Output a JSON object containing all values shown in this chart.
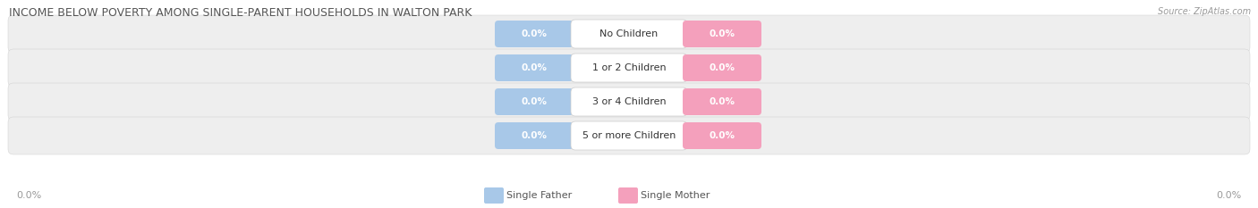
{
  "title": "INCOME BELOW POVERTY AMONG SINGLE-PARENT HOUSEHOLDS IN WALTON PARK",
  "source": "Source: ZipAtlas.com",
  "categories": [
    "No Children",
    "1 or 2 Children",
    "3 or 4 Children",
    "5 or more Children"
  ],
  "single_father_values": [
    0.0,
    0.0,
    0.0,
    0.0
  ],
  "single_mother_values": [
    0.0,
    0.0,
    0.0,
    0.0
  ],
  "father_color": "#a8c8e8",
  "mother_color": "#f4a0bc",
  "row_bg_color": "#eeeeee",
  "title_color": "#555555",
  "source_color": "#999999",
  "axis_label": "0.0%",
  "legend_father": "Single Father",
  "legend_mother": "Single Mother",
  "figsize": [
    14.06,
    2.33
  ],
  "dpi": 100
}
